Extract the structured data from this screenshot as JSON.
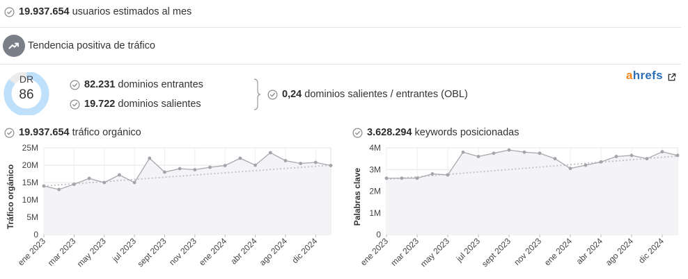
{
  "summary": {
    "users_value": "19.937.654",
    "users_label": "usuarios estimados al mes",
    "trend_label": "Tendencia positiva de tráfico"
  },
  "dr": {
    "label": "DR",
    "value": "86",
    "ratio": 0.86
  },
  "backlinks": {
    "incoming_value": "82.231",
    "incoming_label": "dominios entrantes",
    "outgoing_value": "19.722",
    "outgoing_label": "dominios salientes",
    "obl_value": "0,24",
    "obl_label": "dominios salientes / entrantes (OBL)"
  },
  "brand": {
    "a": "a",
    "rest": "hrefs",
    "icon": "external-link-icon"
  },
  "traffic": {
    "value": "19.937.654",
    "label": "tráfico orgánico"
  },
  "keywords": {
    "value": "3.628.294",
    "label": "keywords posicionadas"
  },
  "colors": {
    "accent_line": "#a7a7af",
    "donut_fill": "#bfe0fb",
    "donut_track": "#ececec",
    "trend_dotted": "#c4c4c8",
    "area": "#f4f4f6",
    "ahrefs_blue": "#2c6fb7",
    "ahrefs_orange": "#f2861e"
  },
  "chart_data": [
    {
      "type": "line",
      "ylabel": "Tráfico orgánico",
      "ylim": [
        0,
        25000000
      ],
      "yticks": [
        0,
        5000000,
        10000000,
        15000000,
        20000000,
        25000000
      ],
      "ytick_labels": [
        "0",
        "5M",
        "10M",
        "15M",
        "20M",
        "25M"
      ],
      "xtick_labels": [
        "ene 2023",
        "mar 2023",
        "may 2023",
        "jul 2023",
        "sept 2023",
        "nov 2023",
        "ene 2024",
        "abr 2024",
        "ago 2024",
        "dic 2024"
      ],
      "xtick_index": [
        0,
        2,
        4,
        6,
        8,
        10,
        12,
        14,
        16,
        18
      ],
      "series": [
        {
          "values": [
            14000000,
            13000000,
            14500000,
            16200000,
            15000000,
            17200000,
            15000000,
            22000000,
            18000000,
            19000000,
            18700000,
            19400000,
            19900000,
            22000000,
            20000000,
            23600000,
            21300000,
            20500000,
            20800000,
            19900000
          ]
        }
      ],
      "trendline": [
        14000000,
        20000000
      ],
      "grid": true
    },
    {
      "type": "line",
      "ylabel": "Palabras clave",
      "ylim": [
        0,
        4000000
      ],
      "yticks": [
        0,
        1000000,
        2000000,
        3000000,
        4000000
      ],
      "ytick_labels": [
        "0",
        "1M",
        "2M",
        "3M",
        "4M"
      ],
      "xtick_labels": [
        "ene 2023",
        "mar 2023",
        "may 2023",
        "jul 2023",
        "sept 2023",
        "nov 2023",
        "ene 2024",
        "abr 2024",
        "ago 2024",
        "dic 2024"
      ],
      "xtick_index": [
        0,
        2,
        4,
        6,
        8,
        10,
        12,
        14,
        16,
        18
      ],
      "series": [
        {
          "values": [
            2600000,
            2600000,
            2600000,
            2800000,
            2750000,
            3800000,
            3600000,
            3750000,
            3900000,
            3800000,
            3750000,
            3500000,
            3050000,
            3200000,
            3350000,
            3600000,
            3650000,
            3500000,
            3820000,
            3650000
          ]
        }
      ],
      "trendline": [
        2550000,
        3620000
      ],
      "grid": true
    }
  ]
}
